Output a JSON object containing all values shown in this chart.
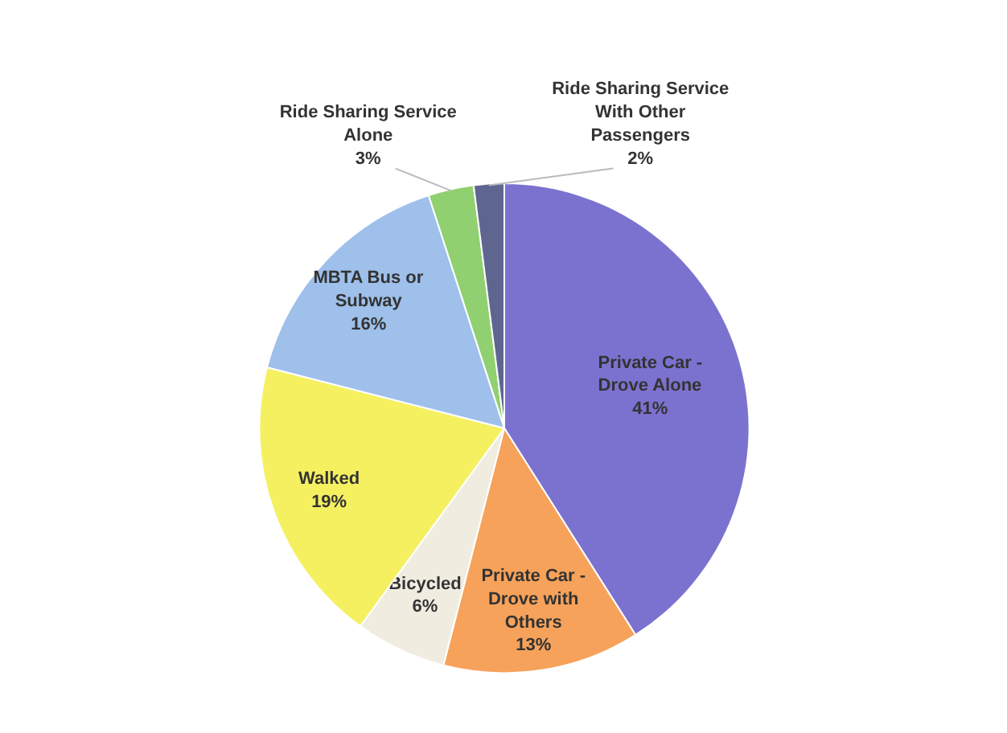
{
  "chart_data": {
    "type": "pie",
    "categories": [
      "Private Car - Drove Alone",
      "Private Car - Drove with Others",
      "Bicycled",
      "Walked",
      "MBTA Bus or Subway",
      "Ride Sharing Service Alone",
      "Ride Sharing Service With Other Passengers"
    ],
    "values": [
      41,
      13,
      6,
      19,
      16,
      3,
      2
    ],
    "value_labels": [
      "41%",
      "13%",
      "6%",
      "19%",
      "16%",
      "3%",
      "2%"
    ],
    "colors": [
      "#7b72d0",
      "#f7a25a",
      "#f0ece0",
      "#f5f060",
      "#9ec0ea",
      "#90d070",
      "#5e6690"
    ],
    "legend": false
  }
}
